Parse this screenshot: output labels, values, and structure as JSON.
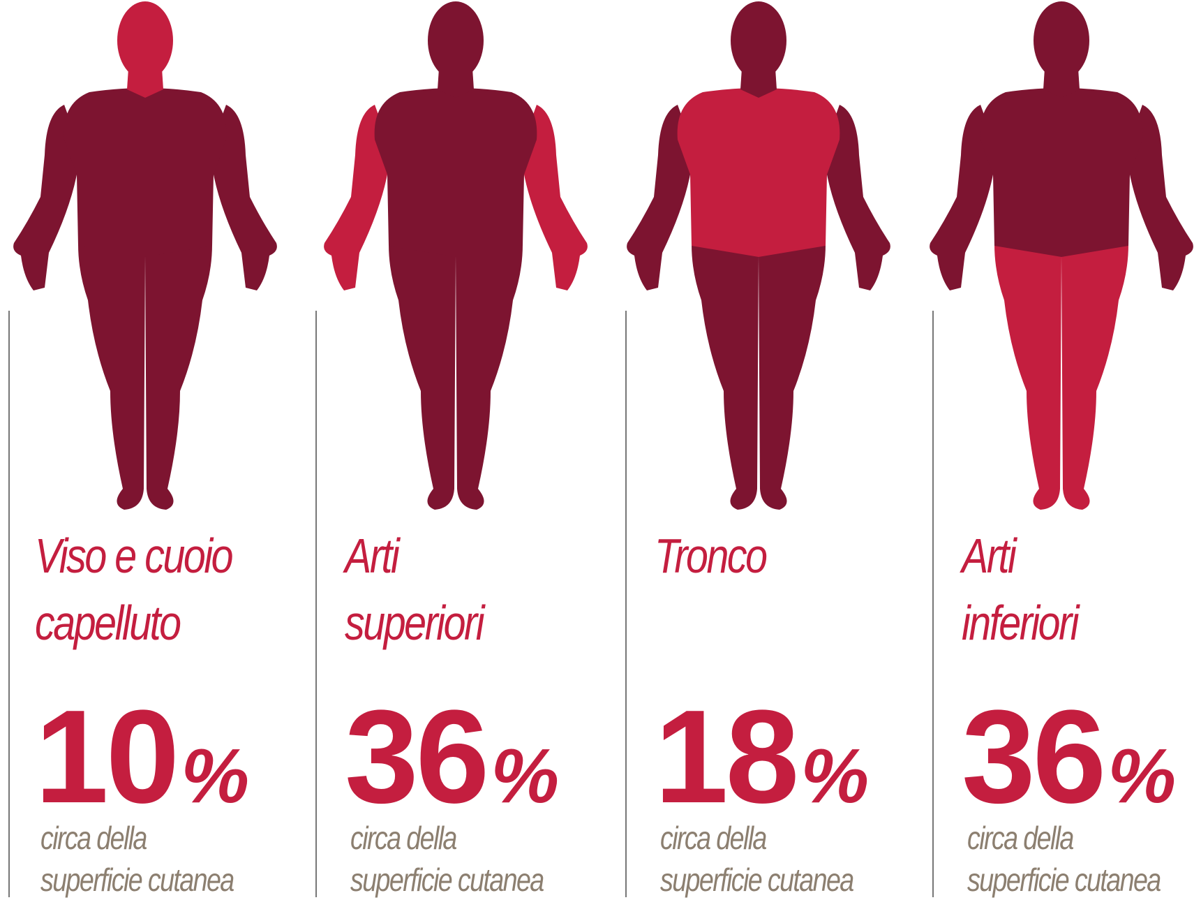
{
  "panels": [
    {
      "label": [
        "Viso e cuoio",
        "capelluto"
      ],
      "number": "10",
      "unit": "%",
      "caption": [
        "circa della",
        "superficie cutanea"
      ]
    },
    {
      "label": [
        "Arti",
        "superiori"
      ],
      "number": "36",
      "unit": "%",
      "caption": [
        "circa della",
        "superficie cutanea"
      ]
    },
    {
      "label": [
        "Tronco"
      ],
      "number": "18",
      "unit": "%",
      "caption": [
        "circa della",
        "superficie cutanea"
      ]
    },
    {
      "label": [
        "Arti",
        "inferiori"
      ],
      "number": "36",
      "unit": "%",
      "caption": [
        "circa della",
        "superficie cutanea"
      ]
    }
  ]
}
